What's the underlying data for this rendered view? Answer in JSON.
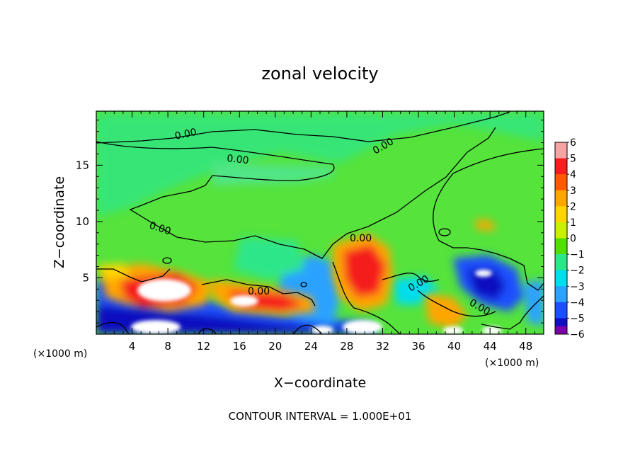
{
  "chart_data": {
    "type": "heatmap",
    "title": "zonal velocity",
    "xlabel": "X−coordinate",
    "ylabel": "Z−coordinate",
    "x_units_left": "(×1000 m)",
    "x_units_right": "(×1000 m)",
    "footer": "CONTOUR INTERVAL = 1.000E+01",
    "xlim": [
      0,
      50
    ],
    "ylim": [
      0,
      19.8
    ],
    "x_ticks": [
      4,
      8,
      12,
      16,
      20,
      24,
      28,
      32,
      36,
      40,
      44,
      48
    ],
    "y_ticks": [
      5,
      10,
      15
    ],
    "contour_labels": [
      "0.00",
      "0.00",
      "0.00",
      "0.00",
      "0.00",
      "0.00",
      "0.00",
      "0.00"
    ],
    "colorbar": {
      "levels": [
        6,
        5,
        4,
        3,
        2,
        1,
        0,
        -1,
        -2,
        -3,
        -4,
        -5,
        -6
      ],
      "labels": [
        "6",
        "5",
        "4",
        "3",
        "2",
        "1",
        "0",
        "−1",
        "−2",
        "−3",
        "−4",
        "−5",
        "−6"
      ],
      "colors": [
        "#f7a3a3",
        "#f51e1e",
        "#ff5a00",
        "#ffa500",
        "#ffd400",
        "#c8f000",
        "#50e000",
        "#2ee68a",
        "#00ddee",
        "#2aa2ff",
        "#1a4fff",
        "#1010c0",
        "#7a00aa"
      ]
    },
    "background_color": "#55e33c",
    "features": [
      {
        "kind": "upper_green",
        "x": [
          0,
          50
        ],
        "z": [
          11,
          19.8
        ],
        "value": 0.3
      },
      {
        "kind": "jet",
        "x": [
          7,
          13
        ],
        "z": [
          3.5,
          5
        ],
        "value": 6.5
      },
      {
        "kind": "jet",
        "x": [
          15,
          21
        ],
        "z": [
          2.5,
          4
        ],
        "value": 6
      },
      {
        "kind": "jet",
        "x": [
          28,
          33
        ],
        "z": [
          3.5,
          8
        ],
        "value": 4.5
      },
      {
        "kind": "jet",
        "x": [
          3,
          6
        ],
        "z": [
          5,
          6
        ],
        "value": 4
      },
      {
        "kind": "jet",
        "x": [
          38,
          41
        ],
        "z": [
          2,
          4
        ],
        "value": 3
      },
      {
        "kind": "jet",
        "x": [
          43,
          44
        ],
        "z": [
          9.5,
          10.5
        ],
        "value": 2.5
      },
      {
        "kind": "reversed_flow",
        "x": [
          0,
          6
        ],
        "z": [
          2,
          4
        ],
        "value": -4
      },
      {
        "kind": "reversed_flow",
        "x": [
          0,
          32
        ],
        "z": [
          0.5,
          2
        ],
        "value": -4.5
      },
      {
        "kind": "reversed_flow",
        "x": [
          22,
          27
        ],
        "z": [
          2,
          7
        ],
        "value": -3
      },
      {
        "kind": "reversed_flow",
        "x": [
          40,
          46
        ],
        "z": [
          2.5,
          7
        ],
        "value": -4.5
      },
      {
        "kind": "reversed_flow",
        "x": [
          46,
          50
        ],
        "z": [
          1,
          4
        ],
        "value": -3
      }
    ]
  }
}
